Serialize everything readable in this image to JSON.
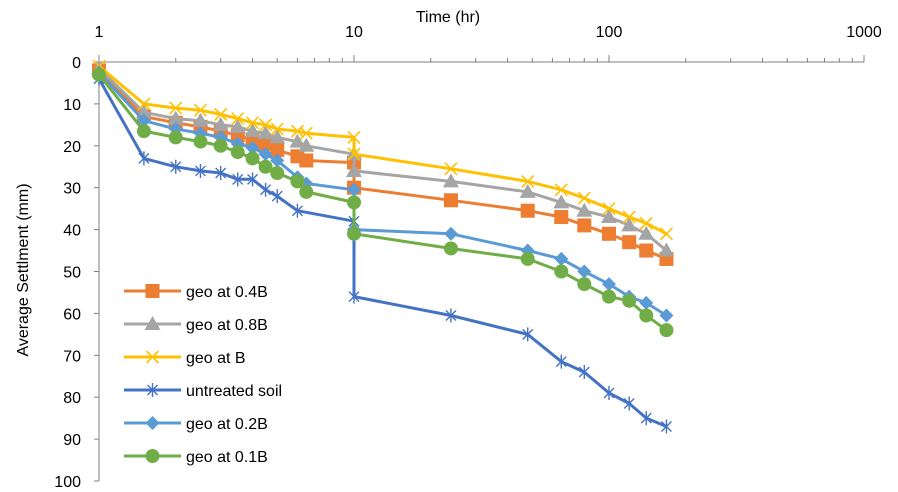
{
  "chart_data": {
    "type": "line",
    "xlabel": "Time (hr)",
    "ylabel": "Average Settlment (mm)",
    "x_scale": "log",
    "xlim": [
      1,
      1000
    ],
    "x_ticks": [
      "1",
      "10",
      "100",
      "1000"
    ],
    "x_axis_position": "top",
    "ylim": [
      0,
      100
    ],
    "y_inverted": true,
    "y_ticks": [
      "0",
      "10",
      "20",
      "30",
      "40",
      "50",
      "60",
      "70",
      "80",
      "90",
      "100"
    ],
    "grid": false,
    "legend_position": "bottom-left",
    "series": [
      {
        "name": "geo at 0.4B",
        "color": "#ED7D31",
        "marker": "square",
        "x": [
          1,
          1.5,
          2,
          2.5,
          3,
          3.5,
          4,
          4.5,
          5,
          6,
          6.5,
          10,
          10,
          24,
          48,
          65,
          80,
          100,
          120,
          140,
          168
        ],
        "y": [
          2,
          13,
          14.5,
          15.5,
          16.5,
          17.5,
          18.5,
          19.5,
          21,
          22.5,
          23.5,
          24,
          30,
          33,
          35.5,
          37,
          39,
          41,
          43,
          45,
          47
        ]
      },
      {
        "name": "geo at 0.8B",
        "color": "#A5A5A5",
        "marker": "triangle",
        "x": [
          1,
          1.5,
          2,
          2.5,
          3,
          3.5,
          4,
          4.5,
          5,
          6,
          6.5,
          10,
          10,
          24,
          48,
          65,
          80,
          100,
          120,
          140,
          168
        ],
        "y": [
          1.5,
          12,
          13.5,
          14,
          15,
          15.5,
          16.5,
          17,
          18,
          19,
          20,
          22,
          26,
          28.5,
          31,
          33.5,
          35.5,
          37,
          39,
          41,
          45
        ]
      },
      {
        "name": "geo at B",
        "color": "#FFC000",
        "marker": "x",
        "x": [
          1,
          1.5,
          2,
          2.5,
          3,
          3.5,
          4,
          4.5,
          5,
          6,
          6.5,
          10,
          10,
          24,
          48,
          65,
          80,
          100,
          120,
          140,
          168
        ],
        "y": [
          1,
          10,
          11,
          11.5,
          12.5,
          13.5,
          14.5,
          15,
          16,
          16.5,
          17,
          18,
          22,
          25.5,
          28.5,
          30.5,
          32.5,
          35,
          37,
          38.5,
          41
        ]
      },
      {
        "name": "untreated soil",
        "color": "#4472C4",
        "marker": "star",
        "x": [
          1,
          1.5,
          2,
          2.5,
          3,
          3.5,
          4,
          4.5,
          5,
          6,
          10,
          10,
          24,
          48,
          65,
          80,
          100,
          120,
          140,
          168
        ],
        "y": [
          4,
          23,
          25,
          26,
          26.5,
          28,
          28,
          30.5,
          32,
          35.5,
          38,
          56,
          60.5,
          65,
          71.5,
          74,
          79,
          81.5,
          85,
          87
        ]
      },
      {
        "name": "geo at 0.2B",
        "color": "#5B9BD5",
        "marker": "diamond",
        "x": [
          1,
          1.5,
          2,
          2.5,
          3,
          3.5,
          4,
          4.5,
          5,
          6,
          6.5,
          10,
          10,
          24,
          48,
          65,
          80,
          100,
          120,
          140,
          168
        ],
        "y": [
          2.5,
          14,
          16,
          17,
          18,
          19.5,
          20.5,
          22,
          23.5,
          27.5,
          29,
          30.5,
          40,
          41,
          45,
          47,
          50,
          53,
          56,
          57.5,
          60.5
        ]
      },
      {
        "name": "geo at 0.1B",
        "color": "#70AD47",
        "marker": "circle",
        "x": [
          1,
          1.5,
          2,
          2.5,
          3,
          3.5,
          4,
          4.5,
          5,
          6,
          6.5,
          10,
          10,
          24,
          48,
          65,
          80,
          100,
          120,
          140,
          168
        ],
        "y": [
          3,
          16.5,
          18,
          19,
          20,
          21.5,
          23,
          25,
          26.5,
          28.5,
          31,
          33.5,
          41,
          44.5,
          47,
          50,
          53,
          56,
          57,
          60.5,
          64
        ]
      }
    ]
  }
}
